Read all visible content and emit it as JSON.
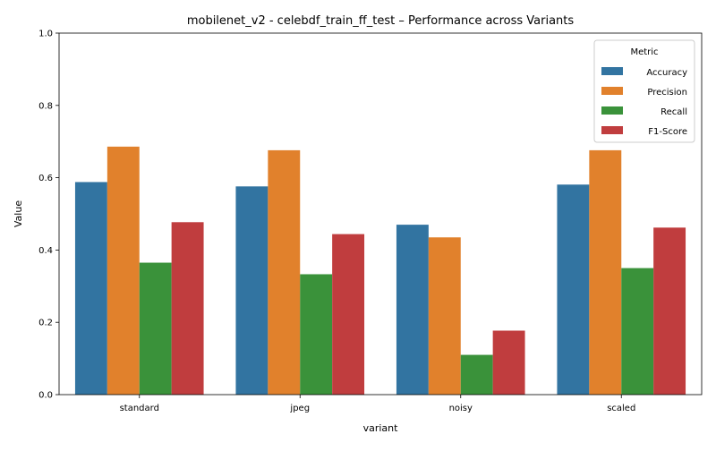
{
  "chart_data": {
    "type": "bar",
    "title": "mobilenet_v2 - celebdf_train_ff_test – Performance across Variants",
    "xlabel": "variant",
    "ylabel": "Value",
    "ylim": [
      0,
      1
    ],
    "yticks": [
      "0.0",
      "0.2",
      "0.4",
      "0.6",
      "0.8",
      "1.0"
    ],
    "categories": [
      "standard",
      "jpeg",
      "noisy",
      "scaled"
    ],
    "legend": {
      "title": "Metric",
      "placement": "top-right"
    },
    "grid": false,
    "series": [
      {
        "name": "Accuracy",
        "color": "#3274a1",
        "values": [
          0.588,
          0.576,
          0.47,
          0.581
        ]
      },
      {
        "name": "Precision",
        "color": "#e1812c",
        "values": [
          0.686,
          0.676,
          0.435,
          0.676
        ]
      },
      {
        "name": "Recall",
        "color": "#3a923a",
        "values": [
          0.365,
          0.333,
          0.11,
          0.35
        ]
      },
      {
        "name": "F1-Score",
        "color": "#c03d3e",
        "values": [
          0.477,
          0.444,
          0.177,
          0.462
        ]
      }
    ]
  }
}
